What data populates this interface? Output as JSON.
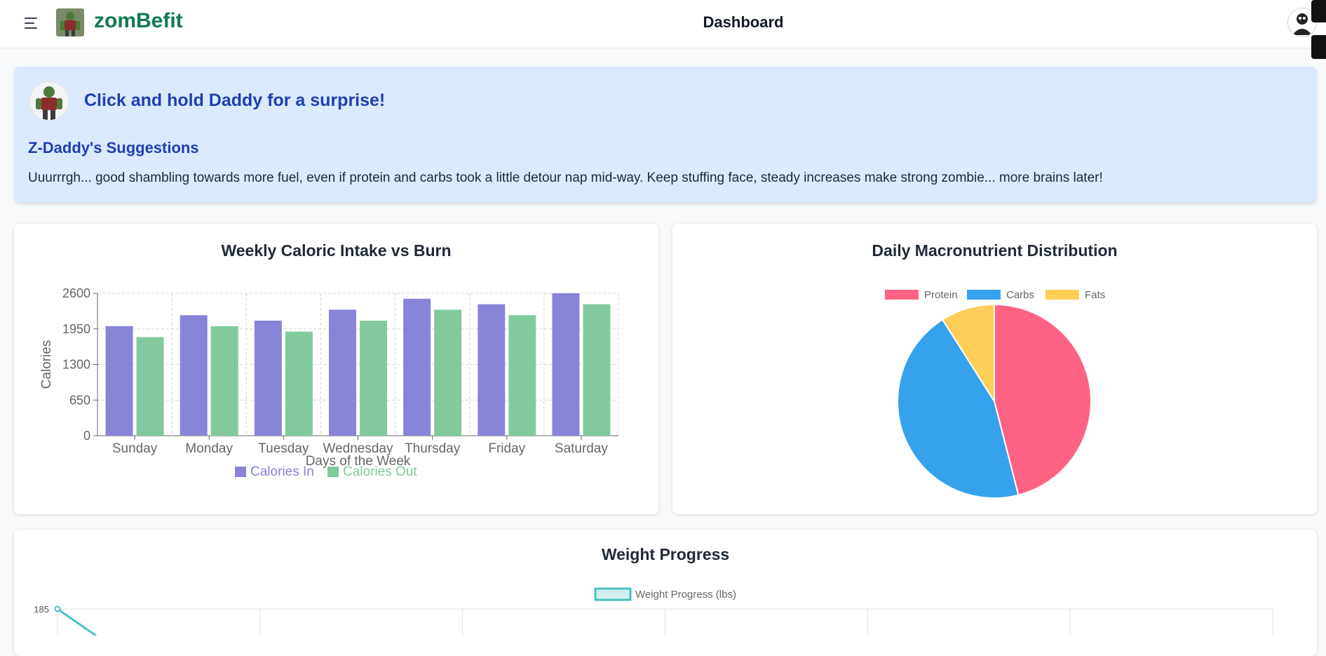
{
  "header": {
    "brand": "zomBefit",
    "title": "Dashboard",
    "menu_icon": "hamburger-menu-icon",
    "logo_icon": "zombie-logo-icon",
    "avatar_icon": "user-avatar-icon"
  },
  "banner": {
    "headline": "Click and hold Daddy for a surprise!",
    "suggestions_title": "Z-Daddy's Suggestions",
    "suggestions_text": "Uuurrrgh... good shambling towards more fuel, even if protein and carbs took a little detour nap mid-way. Keep stuffing face, steady increases make strong zombie... more brains later!",
    "avatar_icon": "zombie-daddy-avatar-icon"
  },
  "colors": {
    "calories_in": "#8884d8",
    "calories_out": "#82ca9d",
    "protein": "#ff6384",
    "carbs": "#36a2eb",
    "fats": "#ffce56",
    "weight_line": "#4bc0c0",
    "brand": "#0f7a52",
    "banner_text": "#1e40af"
  },
  "chart_data": [
    {
      "type": "bar",
      "title": "Weekly Caloric Intake vs Burn",
      "xlabel": "Days of the Week",
      "ylabel": "Calories",
      "categories": [
        "Sunday",
        "Monday",
        "Tuesday",
        "Wednesday",
        "Thursday",
        "Friday",
        "Saturday"
      ],
      "series": [
        {
          "name": "Calories In",
          "values": [
            2000,
            2200,
            2100,
            2300,
            2500,
            2400,
            2600
          ]
        },
        {
          "name": "Calories Out",
          "values": [
            1800,
            2000,
            1900,
            2100,
            2300,
            2200,
            2400
          ]
        }
      ],
      "ylim": [
        0,
        2600
      ],
      "yticks": [
        "0",
        "650",
        "1300",
        "1950",
        "2600"
      ],
      "grid": true,
      "legend": "bottom"
    },
    {
      "type": "pie",
      "title": "Daily Macronutrient Distribution",
      "labels": [
        "Protein",
        "Carbs",
        "Fats"
      ],
      "values": [
        46,
        45,
        9
      ],
      "legend": "top"
    },
    {
      "type": "line",
      "title": "Weight Progress",
      "series": [
        {
          "name": "Weight Progress (lbs)",
          "values": [
            185
          ]
        }
      ],
      "yticks": [
        "185"
      ],
      "legend": "top"
    }
  ]
}
